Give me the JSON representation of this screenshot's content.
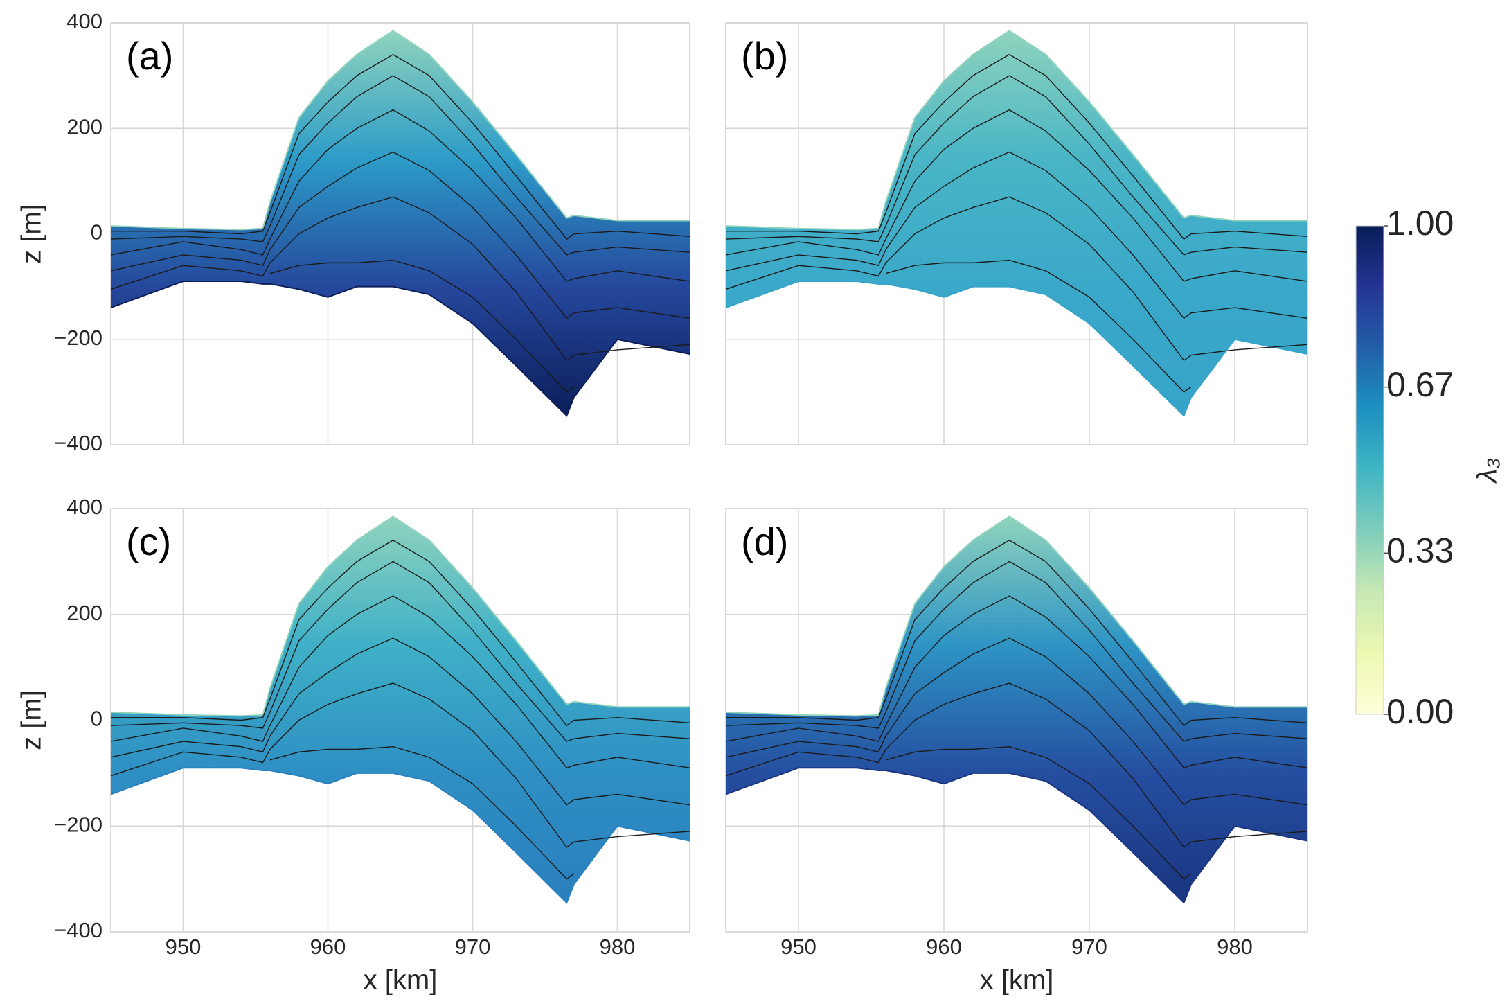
{
  "profile": {
    "x": [
      945,
      950,
      954,
      955.5,
      956,
      958,
      960,
      962,
      964.5,
      967,
      970,
      973,
      976.5,
      977,
      980,
      985
    ],
    "surface": [
      15,
      10,
      8,
      10,
      60,
      220,
      290,
      340,
      385,
      340,
      250,
      150,
      30,
      35,
      25,
      25
    ],
    "bed": [
      -140,
      -90,
      -90,
      -95,
      -95,
      -105,
      -120,
      -100,
      -100,
      -115,
      -170,
      -250,
      -345,
      -310,
      -200,
      -228
    ],
    "layers": [
      [
        5,
        5,
        0,
        5,
        40,
        190,
        250,
        300,
        340,
        300,
        210,
        110,
        -10,
        0,
        5,
        -5
      ],
      [
        -10,
        -5,
        -10,
        -15,
        15,
        150,
        210,
        260,
        300,
        260,
        170,
        70,
        -40,
        -35,
        -25,
        -35
      ],
      [
        -40,
        -15,
        -30,
        -40,
        -10,
        100,
        160,
        200,
        235,
        195,
        120,
        30,
        -90,
        -85,
        -70,
        -90
      ],
      [
        -70,
        -40,
        -50,
        -60,
        -30,
        50,
        90,
        125,
        155,
        120,
        50,
        -40,
        -160,
        -150,
        -140,
        -160
      ],
      [
        -105,
        -60,
        -70,
        -80,
        -55,
        0,
        30,
        50,
        70,
        40,
        -20,
        -110,
        -240,
        -230,
        -220,
        -210
      ],
      [
        null,
        null,
        null,
        null,
        -75,
        -60,
        -55,
        -55,
        -50,
        -70,
        -120,
        -200,
        -300,
        -290,
        null,
        null
      ]
    ]
  },
  "chart_data": [
    {
      "type": "contour",
      "label": "(a)",
      "colors": [
        "#8fd3bd",
        "#2d9cc8",
        "#25479c",
        "#0b1e5a"
      ],
      "ylabel": "z [m]",
      "xlim": [
        945,
        985
      ],
      "ylim": [
        -400,
        400
      ],
      "xticks": [
        950,
        960,
        970,
        980
      ],
      "yticks": [
        {
          "value": -400,
          "label": "−400"
        },
        {
          "value": -200,
          "label": "−200"
        },
        0,
        200,
        400
      ],
      "grid": true
    },
    {
      "type": "contour",
      "label": "(b)",
      "colors": [
        "#8fd3bd",
        "#49b5c6",
        "#3aa8c9",
        "#36a3c9"
      ],
      "xlim": [
        945,
        985
      ],
      "ylim": [
        -400,
        400
      ],
      "xticks": [
        950,
        960,
        970,
        980
      ],
      "yticks": [
        {
          "value": -400,
          "label": "−400"
        },
        {
          "value": -200,
          "label": "−200"
        },
        0,
        200,
        400
      ],
      "grid": true
    },
    {
      "type": "contour",
      "label": "(c)",
      "colors": [
        "#8fd3bd",
        "#3fb0c7",
        "#2e8fc3",
        "#2a7fbd"
      ],
      "ylabel": "z [m]",
      "xlabel": "x [km]",
      "xlim": [
        945,
        985
      ],
      "ylim": [
        -400,
        400
      ],
      "xticks": [
        950,
        960,
        970,
        980
      ],
      "yticks": [
        {
          "value": -400,
          "label": "−400"
        },
        {
          "value": -200,
          "label": "−200"
        },
        0,
        200,
        400
      ],
      "grid": true
    },
    {
      "type": "contour",
      "label": "(d)",
      "colors": [
        "#8fd3bd",
        "#2e94c4",
        "#254ea0",
        "#1a3580"
      ],
      "xlabel": "x [km]",
      "xlim": [
        945,
        985
      ],
      "ylim": [
        -400,
        400
      ],
      "xticks": [
        950,
        960,
        970,
        980
      ],
      "yticks": [
        {
          "value": -400,
          "label": "−400"
        },
        {
          "value": -200,
          "label": "−200"
        },
        0,
        200,
        400
      ],
      "grid": true
    }
  ],
  "colorbar": {
    "label": "λ₃",
    "lim": [
      0,
      1
    ],
    "ticks": [
      {
        "value": 0,
        "label": "0.00"
      },
      {
        "value": 0.33,
        "label": "0.33"
      },
      {
        "value": 0.67,
        "label": "0.67"
      },
      {
        "value": 1,
        "label": "1.00"
      }
    ],
    "colors": [
      "#ffffd9",
      "#edf8b1",
      "#c7e9b4",
      "#7fcdbb",
      "#41b6c4",
      "#1d91c0",
      "#225ea8",
      "#253494",
      "#081d58"
    ]
  }
}
